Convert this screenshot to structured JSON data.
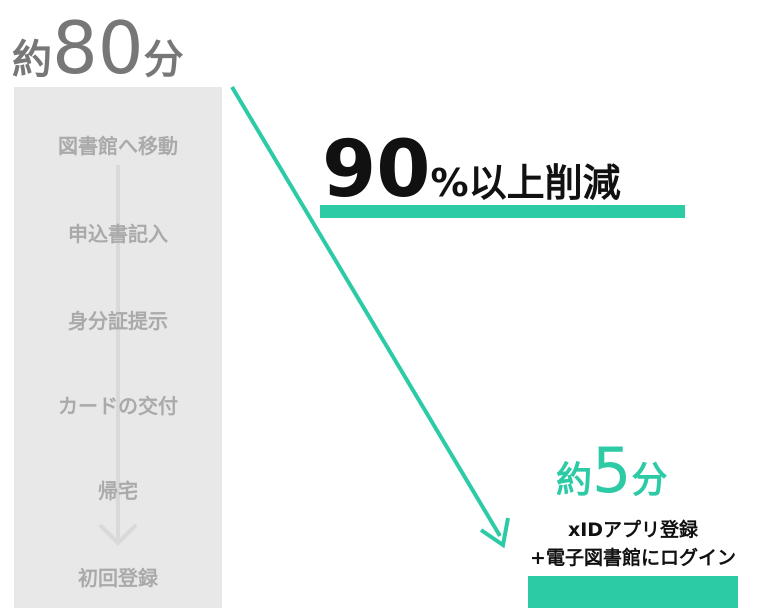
{
  "before": {
    "prefix": "約",
    "number": "80",
    "unit": "分",
    "steps": [
      "図書館へ移動",
      "申込書記入",
      "身分証提示",
      "カードの交付",
      "帰宅",
      "初回登録"
    ]
  },
  "reduction": {
    "number": "90",
    "text": "%以上削減"
  },
  "after": {
    "prefix": "約",
    "number": "5",
    "unit": "分",
    "lines": [
      "xIDアプリ登録",
      "+電子図書館にログイン"
    ]
  }
}
